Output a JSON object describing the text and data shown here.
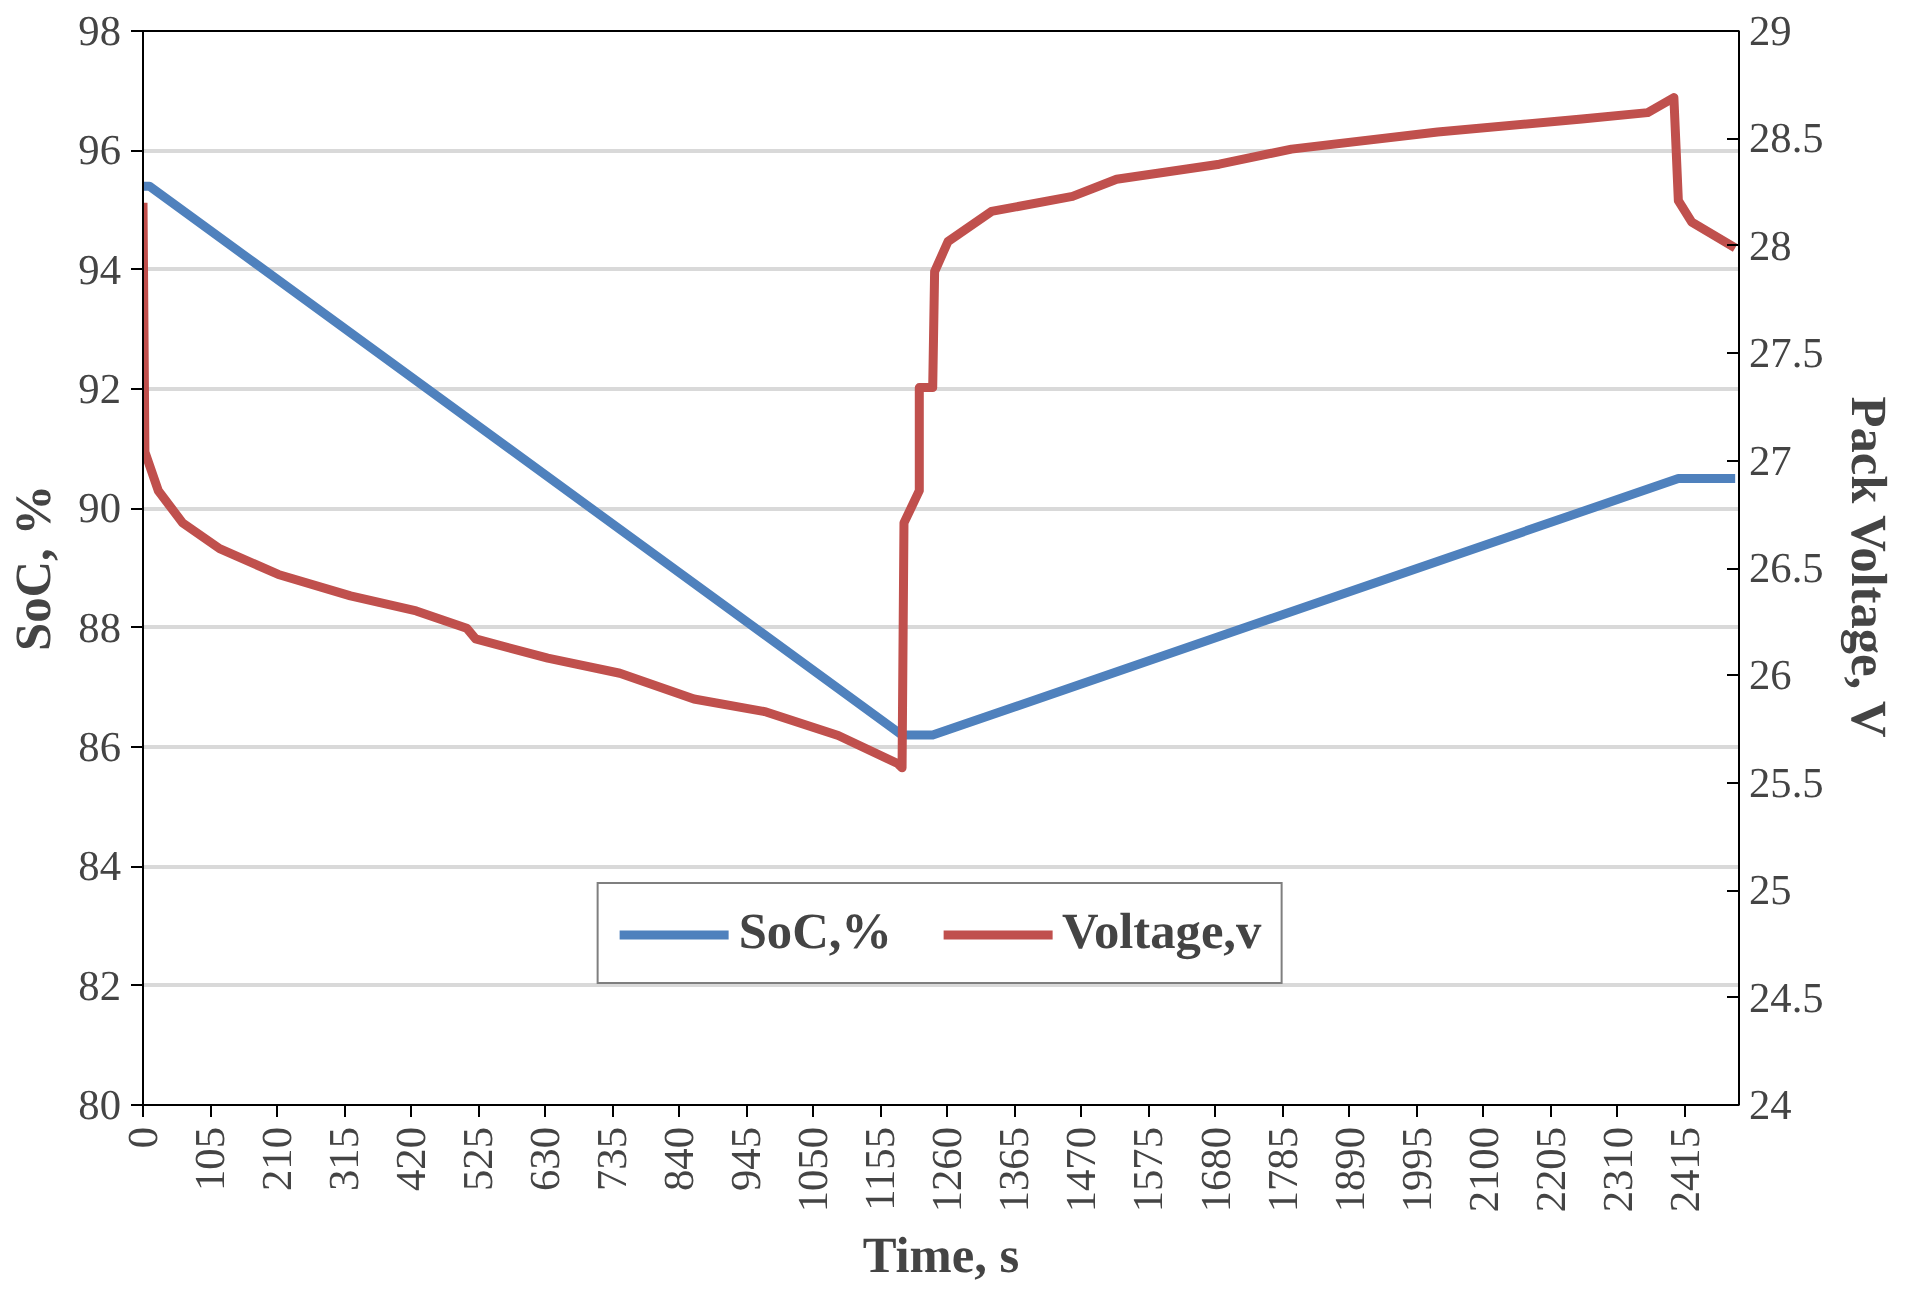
{
  "chart_data": {
    "type": "line",
    "xlabel": "Time, s",
    "ylabel": "SoC, %",
    "y2label": "Pack Voltage, V",
    "xlim": [
      0,
      2500
    ],
    "xticks": [
      0,
      105,
      210,
      315,
      420,
      525,
      630,
      735,
      840,
      945,
      1050,
      1155,
      1260,
      1365,
      1470,
      1575,
      1680,
      1785,
      1890,
      1995,
      2100,
      2205,
      2310,
      2415
    ],
    "ylim": [
      80,
      98
    ],
    "yticks": [
      80,
      82,
      84,
      86,
      88,
      90,
      92,
      94,
      96,
      98
    ],
    "y2lim": [
      24,
      29
    ],
    "y2ticks": [
      24,
      24.5,
      25,
      25.5,
      26,
      26.5,
      27,
      27.5,
      28,
      28.5,
      29
    ],
    "grid": "y",
    "legend": "bottom",
    "line_style": "solid",
    "marker": "none",
    "series": [
      {
        "name": "SoC,%",
        "color": "#4f81bd",
        "x": [
          0,
          10,
          1189,
          1237,
          2405,
          2494
        ],
        "values": [
          95.4,
          95.4,
          86.2,
          86.2,
          90.5,
          90.5
        ]
      },
      {
        "name": "Voltage,v",
        "color": "#c0504d",
        "axis": "y2",
        "x": [
          0,
          3,
          24,
          62,
          120,
          212,
          325,
          428,
          507,
          521,
          634,
          747,
          863,
          976,
          1089,
          1182,
          1189,
          1192,
          1216,
          1216,
          1237,
          1240,
          1261,
          1329,
          1456,
          1525,
          1686,
          1799,
          2028,
          2254,
          2357,
          2398,
          2405,
          2426,
          2494
        ],
        "values": [
          28.2,
          27.04,
          26.86,
          26.71,
          26.59,
          26.47,
          26.37,
          26.3,
          26.22,
          26.17,
          26.08,
          26.01,
          25.89,
          25.83,
          25.72,
          25.59,
          25.57,
          26.71,
          26.86,
          27.34,
          27.34,
          27.88,
          28.02,
          28.16,
          28.23,
          28.31,
          28.38,
          28.45,
          28.53,
          28.59,
          28.62,
          28.69,
          28.21,
          28.11,
          27.99
        ]
      }
    ]
  }
}
